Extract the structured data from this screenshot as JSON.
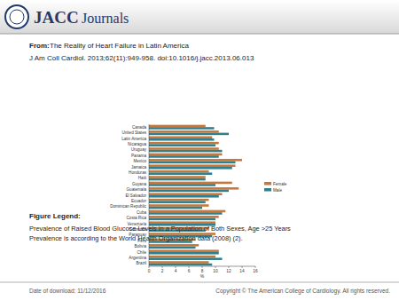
{
  "header": {
    "journal": "JACC",
    "journal_suffix": "Journals",
    "from_label": "From:",
    "from_title": "The Reality of Heart Failure in Latin America",
    "citation": "J Am Coll Cardiol. 2013;62(11):949-958. doi:10.1016/j.jacc.2013.06.013"
  },
  "chart_data": {
    "type": "bar",
    "orientation": "horizontal",
    "xlabel": "%",
    "categories": [
      "Canada",
      "United States",
      "Latin America",
      "Nicaragua",
      "Uruguay",
      "Panama",
      "Mexico",
      "Jamaica",
      "Honduras",
      "Haiti",
      "Guyana",
      "Guatemala",
      "El Salvador",
      "Ecuador",
      "Dominican Republic",
      "Cuba",
      "Costa Rica",
      "Venezuela",
      "Colombia",
      "Paraguay",
      "Peru",
      "Bolivia",
      "Chile",
      "Argentina",
      "Brazil"
    ],
    "series": [
      {
        "name": "Female",
        "color": "#c8773a",
        "values": [
          8.5,
          10.5,
          9.5,
          10.5,
          10.5,
          11.0,
          14.0,
          13.0,
          9.0,
          8.5,
          12.5,
          13.5,
          11.0,
          9.0,
          9.0,
          11.5,
          10.5,
          10.0,
          9.0,
          10.0,
          7.0,
          7.5,
          10.5,
          10.0,
          9.0
        ]
      },
      {
        "name": "Male",
        "color": "#2f7f8c",
        "values": [
          9.8,
          12.0,
          9.8,
          10.0,
          11.0,
          10.5,
          13.0,
          12.5,
          9.5,
          8.5,
          10.0,
          12.0,
          10.5,
          8.5,
          8.0,
          11.0,
          10.0,
          10.0,
          8.5,
          9.5,
          6.5,
          7.0,
          10.5,
          11.0,
          9.5
        ]
      }
    ],
    "xlim": [
      0,
      16
    ],
    "xticks": [
      0,
      2,
      4,
      6,
      8,
      10,
      12,
      14,
      16
    ],
    "grid": false,
    "legend": "right"
  },
  "figure_legend": {
    "heading": "Figure Legend:",
    "lines": [
      "Prevalence of Raised Blood Glucose Levels in a Population of Both Sexes, Age >25 Years",
      "Prevalence is according to the World Health Organization data (2008) (2)."
    ]
  },
  "footer": {
    "date": "Date of download:  11/12/2016",
    "copyright": "Copyright © The American College of Cardiology. All rights reserved."
  }
}
